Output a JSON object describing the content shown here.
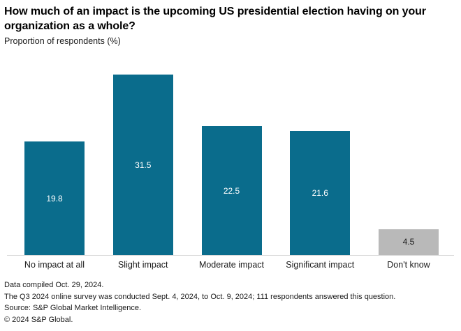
{
  "header": {
    "title": "How much of an impact is the upcoming US presidential election having on your organization as a whole?",
    "subtitle": "Proportion of respondents (%)"
  },
  "chart_data": {
    "type": "bar",
    "title": "How much of an impact is the upcoming US presidential election having on your organization as a whole?",
    "ylabel": "Proportion of respondents (%)",
    "xlabel": "",
    "categories": [
      "No impact at all",
      "Slight impact",
      "Moderate impact",
      "Significant impact",
      "Don't know"
    ],
    "values": [
      19.8,
      31.5,
      22.5,
      21.6,
      4.5
    ],
    "bar_colors": [
      "#0a6c8c",
      "#0a6c8c",
      "#0a6c8c",
      "#0a6c8c",
      "#b9b9b9"
    ],
    "value_label_colors": [
      "#ffffff",
      "#ffffff",
      "#ffffff",
      "#ffffff",
      "#1a1a1a"
    ],
    "ylim": [
      0,
      35
    ],
    "grid": false,
    "legend": "none",
    "value_labels_shown": true
  },
  "colors": {
    "bar_teal": "#0a6c8c",
    "bar_gray": "#b9b9b9",
    "axis_line": "#d9d9d9",
    "text": "#1a1a1a"
  },
  "footer": {
    "lines": [
      "Data compiled Oct. 29, 2024.",
      "The Q3 2024 online survey was conducted Sept. 4, 2024, to Oct. 9, 2024; 111 respondents answered this question.",
      "Source: S&P Global Market Intelligence.",
      "© 2024 S&P Global."
    ]
  }
}
